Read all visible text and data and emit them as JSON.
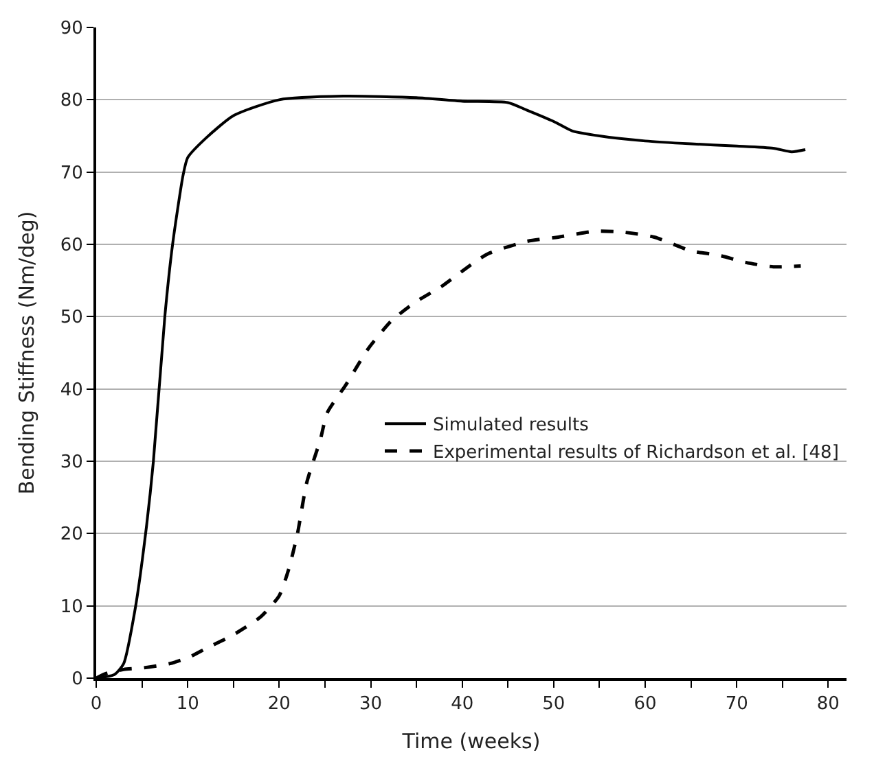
{
  "chart_data": {
    "type": "line",
    "xlabel": "Time (weeks)",
    "ylabel": "Bending Stiffness (Nm/deg)",
    "xlim": [
      0,
      82
    ],
    "ylim": [
      0,
      90
    ],
    "xticks": [
      0,
      {
        "value": 5,
        "label": null
      },
      10,
      {
        "value": 15,
        "label": null
      },
      20,
      {
        "value": 25,
        "label": null
      },
      30,
      {
        "value": 35,
        "label": null
      },
      40,
      {
        "value": 45,
        "label": null
      },
      50,
      {
        "value": 55,
        "label": null
      },
      60,
      {
        "value": 65,
        "label": null
      },
      70,
      {
        "value": 75,
        "label": null
      },
      80
    ],
    "yticks": [
      0,
      10,
      20,
      30,
      40,
      50,
      60,
      70,
      80,
      90
    ],
    "grid": "y",
    "legend": "right",
    "marker": "none",
    "series": [
      {
        "name": "Simulated results",
        "color": "#000000",
        "line_style": "solid",
        "x": [
          0,
          2,
          3,
          4.25,
          5.4,
          6.25,
          7.5,
          8.35,
          9.5,
          10,
          12,
          15,
          20,
          27,
          35,
          40,
          45,
          47,
          50,
          52,
          55,
          60,
          65,
          70,
          74,
          76,
          77.5
        ],
        "values": [
          0,
          0.5,
          2,
          9.5,
          20,
          30,
          50,
          60,
          69.6,
          72,
          74.7,
          77.8,
          80,
          80.5,
          80.3,
          79.8,
          79.6,
          78.6,
          77,
          75.7,
          75,
          74.3,
          73.9,
          73.6,
          73.3,
          72.8,
          73.1
        ]
      },
      {
        "name": "Experimental results of Richardson et al. [48]",
        "color": "#000000",
        "line_style": "dashed",
        "x": [
          0,
          1,
          3,
          5,
          8,
          10,
          12,
          15,
          18,
          20,
          21,
          22,
          23,
          24.5,
          25.25,
          27.25,
          29.75,
          32.25,
          34.75,
          37.25,
          38,
          41.75,
          43,
          47,
          50.5,
          54.5,
          57.5,
          61,
          65,
          68,
          71,
          74,
          77
        ],
        "values": [
          0,
          0.6,
          1.2,
          1.4,
          2,
          2.8,
          4.1,
          6,
          8.5,
          11.4,
          14.9,
          20,
          27,
          33,
          36.7,
          40.5,
          45.6,
          49.4,
          51.9,
          53.8,
          54.4,
          57.9,
          58.8,
          60.4,
          61,
          61.8,
          61.7,
          61,
          59.1,
          58.5,
          57.5,
          56.9,
          57
        ]
      }
    ]
  }
}
